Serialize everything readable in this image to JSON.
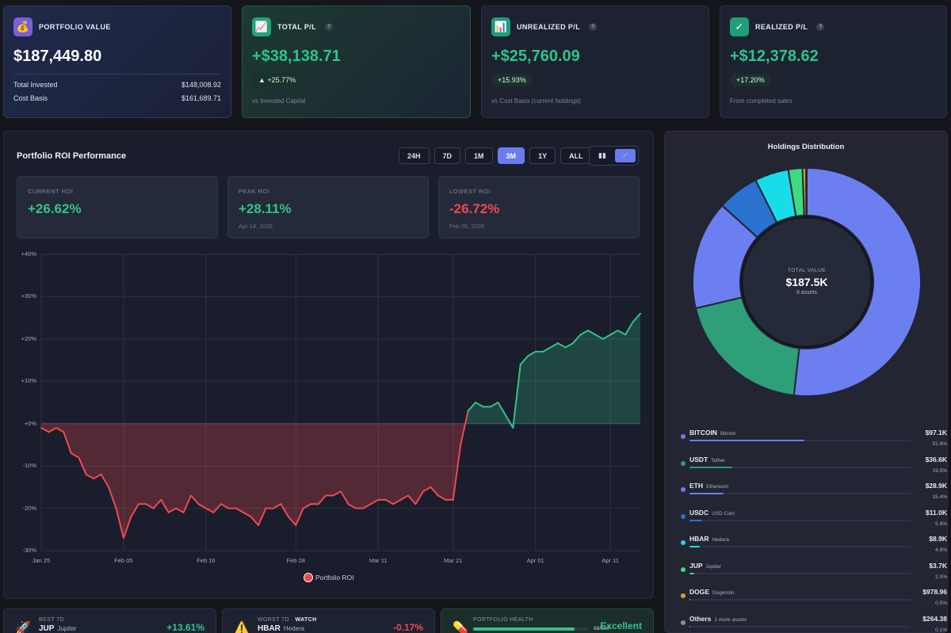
{
  "cards": {
    "portfolio": {
      "title": "PORTFOLIO VALUE",
      "value": "$187,449.80",
      "rows": [
        {
          "label": "Total Invested",
          "value": "$148,008.92"
        },
        {
          "label": "Cost Basis",
          "value": "$161,689.71"
        }
      ],
      "icon": "money-bag-icon"
    },
    "total_pl": {
      "title": "TOTAL P/L",
      "value": "+$38,138.71",
      "badge": "▲ +25.77%",
      "sub": "vs Invested Capital",
      "icon": "chart-up-icon"
    },
    "unrealized": {
      "title": "UNREALIZED P/L",
      "value": "+$25,760.09",
      "badge": "+15.93%",
      "sub": "vs Cost Basis (current holdings)",
      "icon": "bar-chart-icon"
    },
    "realized": {
      "title": "REALIZED P/L",
      "value": "+$12,378.62",
      "badge": "+17.20%",
      "sub": "From completed sales",
      "icon": "check-icon"
    },
    "help": "?"
  },
  "roi": {
    "title": "Portfolio ROI Performance",
    "timeframes": [
      "24H",
      "7D",
      "1M",
      "3M",
      "1Y",
      "ALL"
    ],
    "active_timeframe": "3M",
    "view_icons": [
      "bar-chart-icon",
      "line-chart-icon"
    ],
    "metrics": [
      {
        "label": "CURRENT ROI",
        "value": "+26.62%",
        "date": ""
      },
      {
        "label": "PEAK ROI",
        "value": "+28.11%",
        "date": "Apr 14, 2026"
      },
      {
        "label": "LOWEST ROI",
        "value": "-26.72%",
        "date": "Feb 05, 2026"
      }
    ],
    "legend": "Portfolio ROI"
  },
  "chart_data": {
    "type": "area",
    "ylim": [
      -30,
      40
    ],
    "y_ticks": [
      "+40%",
      "+30%",
      "+20%",
      "+10%",
      "+0%",
      "-10%",
      "-20%",
      "-30%"
    ],
    "x_ticks": [
      "Jan 25",
      "Feb 05",
      "Feb 16",
      "Feb 28",
      "Mar 11",
      "Mar 21",
      "Apr 01",
      "Apr 11"
    ],
    "x_tick_days": [
      0,
      11,
      22,
      34,
      45,
      55,
      66,
      76
    ],
    "series": [
      {
        "name": "Portfolio ROI",
        "x_days": [
          0,
          1,
          2,
          3,
          4,
          5,
          6,
          7,
          8,
          9,
          10,
          11,
          12,
          13,
          14,
          15,
          16,
          17,
          18,
          19,
          20,
          21,
          22,
          23,
          24,
          25,
          26,
          27,
          28,
          29,
          30,
          31,
          32,
          33,
          34,
          35,
          36,
          37,
          38,
          39,
          40,
          41,
          42,
          43,
          44,
          45,
          46,
          47,
          48,
          49,
          50,
          51,
          52,
          53,
          54,
          55,
          56,
          57,
          58,
          59,
          60,
          61,
          62,
          63,
          64,
          65,
          66,
          67,
          68,
          69,
          70,
          71,
          72,
          73,
          74,
          75,
          76,
          77,
          78,
          79,
          80
        ],
        "values": [
          -1,
          -2,
          -1,
          -2,
          -7,
          -8,
          -12,
          -13,
          -12,
          -15,
          -20,
          -27,
          -22,
          -19,
          -19,
          -20,
          -18,
          -21,
          -20,
          -21,
          -17,
          -19,
          -20,
          -21,
          -19,
          -20,
          -20,
          -21,
          -22,
          -24,
          -20,
          -20,
          -19,
          -22,
          -24,
          -20,
          -19,
          -19,
          -17,
          -17,
          -16,
          -19,
          -20,
          -20,
          -19,
          -18,
          -18,
          -19,
          -18,
          -17,
          -19,
          -16,
          -15,
          -17,
          -18,
          -18,
          -5,
          3,
          5,
          4,
          4,
          5,
          2,
          -1,
          14,
          16,
          17,
          17,
          18,
          19,
          18,
          19,
          21,
          22,
          21,
          20,
          21,
          22,
          21,
          24,
          26
        ]
      }
    ]
  },
  "holdings": {
    "title": "Holdings Distribution",
    "center_label": "TOTAL VALUE",
    "center_value": "$187.5K",
    "center_sub": "8 assets",
    "items": [
      {
        "sym": "BITCOIN",
        "name": "Bitcoin",
        "amount": "$97.1K",
        "pct": "51.8%",
        "share": 51.8,
        "color": "#6b7ff0"
      },
      {
        "sym": "USDT",
        "name": "Tether",
        "amount": "$36.6K",
        "pct": "19.5%",
        "share": 19.5,
        "color": "#2e9f78"
      },
      {
        "sym": "ETH",
        "name": "Ethereum",
        "amount": "$28.9K",
        "pct": "15.4%",
        "share": 15.4,
        "color": "#6b7ff0"
      },
      {
        "sym": "USDC",
        "name": "USD Coin",
        "amount": "$11.0K",
        "pct": "5.9%",
        "share": 5.9,
        "color": "#2a71d0"
      },
      {
        "sym": "HBAR",
        "name": "Hedera",
        "amount": "$8.9K",
        "pct": "4.8%",
        "share": 4.8,
        "color": "#19dcea"
      },
      {
        "sym": "JUP",
        "name": "Jupiter",
        "amount": "$3.7K",
        "pct": "2.0%",
        "share": 2.0,
        "color": "#3ddc84"
      },
      {
        "sym": "DOGE",
        "name": "Dogecoin",
        "amount": "$978.96",
        "pct": "0.5%",
        "share": 0.5,
        "color": "#c9a43a"
      },
      {
        "sym": "Others",
        "name": "1 more assets",
        "amount": "$264.38",
        "pct": "0.1%",
        "share": 0.1,
        "color": "#8a8f9c"
      }
    ]
  },
  "bottom": {
    "best": {
      "label": "BEST 7D",
      "sym": "JUP",
      "name": "Jupiter",
      "pct": "+13.61%",
      "icon": "rocket-icon"
    },
    "worst": {
      "label": "WORST 7D · ",
      "tag": "WATCH",
      "sym": "HBAR",
      "name": "Hedera",
      "pct": "-0.17%",
      "icon": "warning-icon"
    },
    "health": {
      "label": "PORTFOLIO HEALTH",
      "status": "Excellent",
      "score": "88/100",
      "score_value": 88,
      "icon": "pill-icon"
    }
  }
}
